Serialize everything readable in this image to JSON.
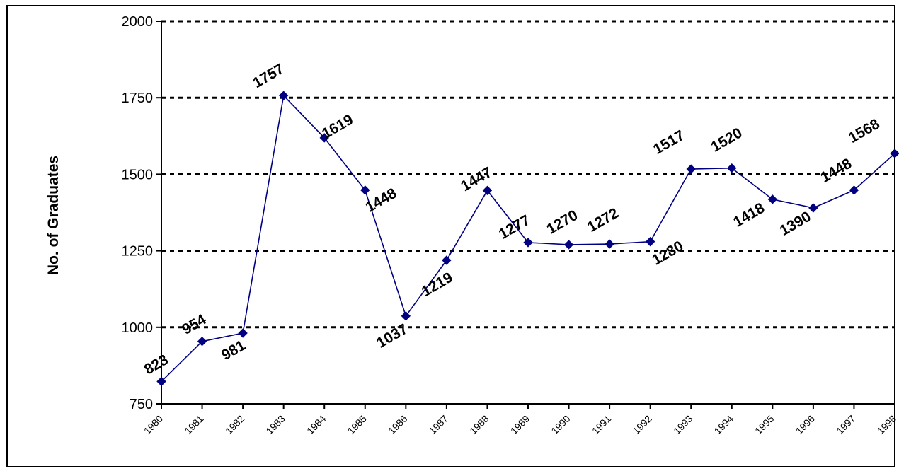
{
  "chart_data": {
    "type": "line",
    "title": "",
    "xlabel": "",
    "ylabel": "No. of Graduates",
    "categories": [
      "1980",
      "1981",
      "1982",
      "1983",
      "1984",
      "1985",
      "1986",
      "1987",
      "1988",
      "1989",
      "1990",
      "1991",
      "1992",
      "1993",
      "1994",
      "1995",
      "1996",
      "1997",
      "1998"
    ],
    "series": [
      {
        "values": [
          823,
          954,
          981,
          1757,
          1619,
          1448,
          1037,
          1219,
          1447,
          1277,
          1270,
          1272,
          1280,
          1517,
          1520,
          1418,
          1390,
          1448,
          1568
        ],
        "color": "#000080"
      }
    ],
    "ylim": [
      750,
      2000
    ],
    "yticks": [
      750,
      1000,
      1250,
      1500,
      1750,
      2000
    ],
    "grid": true,
    "gridline_style": "dotted",
    "marker": "diamond",
    "data_labels": true,
    "legend": "none"
  }
}
